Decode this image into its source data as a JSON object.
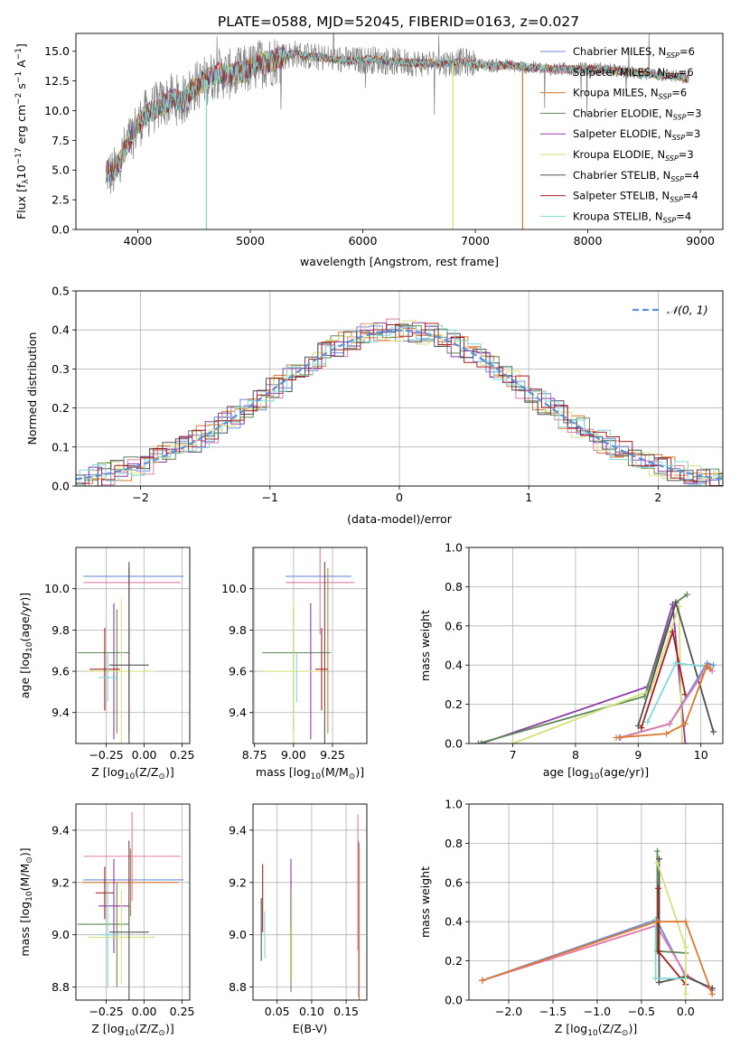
{
  "figure": {
    "title": "PLATE=0588, MJD=52045, FIBERID=0163, z=0.027"
  },
  "chart_data": [
    {
      "id": "spectrum",
      "type": "line",
      "xlabel": "wavelength [Angstrom, rest frame]",
      "ylabel": "Flux [f",
      "ylabel_sub": "λ",
      "ylabel_rest": "10",
      "ylabel_exp1": "−17",
      "ylabel_mid": " erg cm",
      "ylabel_exp2": "−2",
      "ylabel_mid2": " s",
      "ylabel_exp3": "−1",
      "ylabel_mid3": " A",
      "ylabel_exp4": "−1",
      "ylabel_end": "]",
      "xlim": [
        3450,
        9200
      ],
      "ylim": [
        0,
        16.5
      ],
      "xticks": [
        "4000",
        "5000",
        "6000",
        "7000",
        "8000",
        "9000"
      ],
      "xtick_values": [
        4000,
        5000,
        6000,
        7000,
        8000,
        9000
      ],
      "yticks": [
        "0.0",
        "2.5",
        "5.0",
        "7.5",
        "10.0",
        "12.5",
        "15.0"
      ],
      "ytick_values": [
        0,
        2.5,
        5,
        7.5,
        10,
        12.5,
        15
      ],
      "data_profile": {
        "x": [
          3700,
          3780,
          3850,
          3950,
          4050,
          4150,
          4300,
          4400,
          4500,
          4600,
          4700,
          4800,
          4900,
          5000,
          5100,
          5200,
          5300,
          5400,
          5500,
          5700,
          5900,
          6100,
          6300,
          6500,
          6700,
          6900,
          7100,
          7300,
          7500,
          7700,
          7900,
          8100,
          8300,
          8500,
          8700,
          8900
        ],
        "y": [
          5.0,
          4.6,
          6.0,
          8.0,
          9.5,
          10.2,
          11.0,
          10.8,
          12.0,
          12.5,
          13.2,
          13.0,
          13.2,
          13.5,
          14.0,
          14.2,
          14.6,
          14.8,
          14.6,
          14.4,
          14.2,
          14.3,
          14.1,
          14.0,
          14.0,
          14.1,
          13.8,
          13.8,
          13.6,
          13.5,
          13.5,
          13.5,
          13.3,
          13.1,
          13.0,
          12.7
        ]
      },
      "legend": [
        {
          "label": "Chabrier MILES, N",
          "sub": "SSP",
          "tail": "=6",
          "color": "#6b8fd8"
        },
        {
          "label": "Salpeter MILES, N",
          "sub": "SSP",
          "tail": "=6",
          "color": "#e07aa8"
        },
        {
          "label": "Kroupa MILES, N",
          "sub": "SSP",
          "tail": "=6",
          "color": "#d9782f"
        },
        {
          "label": "Chabrier ELODIE, N",
          "sub": "SSP",
          "tail": "=3",
          "color": "#5a8a58"
        },
        {
          "label": "Salpeter ELODIE, N",
          "sub": "SSP",
          "tail": "=3",
          "color": "#8e3aa8"
        },
        {
          "label": "Kroupa ELODIE, N",
          "sub": "SSP",
          "tail": "=3",
          "color": "#d6e07a"
        },
        {
          "label": "Chabrier STELIB, N",
          "sub": "SSP",
          "tail": "=4",
          "color": "#505050"
        },
        {
          "label": "Salpeter STELIB, N",
          "sub": "SSP",
          "tail": "=4",
          "color": "#a81c1c"
        },
        {
          "label": "Kroupa STELIB, N",
          "sub": "SSP",
          "tail": "=4",
          "color": "#7fd8d8"
        }
      ]
    },
    {
      "id": "residual-hist",
      "type": "bar",
      "xlabel": "(data-model)/error",
      "ylabel": "Normed distribution",
      "xlim": [
        -2.5,
        2.5
      ],
      "ylim": [
        0,
        0.5
      ],
      "xticks": [
        "−2",
        "−1",
        "0",
        "1",
        "2"
      ],
      "xtick_values": [
        -2,
        -1,
        0,
        1,
        2
      ],
      "yticks": [
        "0.0",
        "0.1",
        "0.2",
        "0.3",
        "0.4",
        "0.5"
      ],
      "ytick_values": [
        0,
        0.1,
        0.2,
        0.3,
        0.4,
        0.5
      ],
      "bin_width": 0.1,
      "gaussian_label": "𝒩(0, 1)",
      "gaussian_color": "#5b8fd8"
    },
    {
      "id": "age-vs-Z",
      "type": "scatter",
      "xlabel": "Z [log",
      "xlabel_sub": "10",
      "xlabel_tail": "(Z/Z",
      "xlabel_sub2": "⊙",
      "xlabel_end": ")]",
      "ylabel": "age  [log",
      "ylabel_sub": "10",
      "ylabel_tail": "(age/yr)]",
      "xlim": [
        -0.45,
        0.3
      ],
      "ylim": [
        9.25,
        10.2
      ],
      "xticks": [
        "−0.25",
        "0.00",
        "0.25"
      ],
      "xtick_values": [
        -0.25,
        0,
        0.25
      ],
      "yticks": [
        "9.4",
        "9.6",
        "9.8",
        "10.0"
      ],
      "ytick_values": [
        9.4,
        9.6,
        9.8,
        10.0
      ],
      "points": [
        {
          "x": -0.07,
          "xerr": 0.33,
          "y": 10.06,
          "yerr": 0.0,
          "color": "#6b8fd8"
        },
        {
          "x": -0.08,
          "xerr": 0.32,
          "y": 10.03,
          "yerr": 0.0,
          "color": "#e07aa8"
        },
        {
          "x": -0.1,
          "xerr": 0.0,
          "y": 9.7,
          "yerr": 0.4,
          "color": "#d9782f"
        },
        {
          "x": -0.27,
          "xerr": 0.17,
          "y": 9.69,
          "yerr": 0.0,
          "color": "#5a8a58"
        },
        {
          "x": -0.18,
          "xerr": 0.0,
          "y": 9.6,
          "yerr": 0.3,
          "color": "#5a8a58"
        },
        {
          "x": -0.2,
          "xerr": 0.0,
          "y": 9.6,
          "yerr": 0.33,
          "color": "#8e3aa8"
        },
        {
          "x": -0.15,
          "xerr": 0.22,
          "y": 9.6,
          "yerr": 0.35,
          "color": "#d6e07a"
        },
        {
          "x": -0.1,
          "xerr": 0.13,
          "y": 9.63,
          "yerr": 0.5,
          "color": "#505050"
        },
        {
          "x": -0.26,
          "xerr": 0.1,
          "y": 9.61,
          "yerr": 0.2,
          "color": "#a81c1c"
        },
        {
          "x": -0.24,
          "xerr": 0.06,
          "y": 9.57,
          "yerr": 0.12,
          "color": "#7fd8d8"
        }
      ]
    },
    {
      "id": "age-vs-mass",
      "type": "scatter",
      "xlabel": "mass [log",
      "xlabel_sub": "10",
      "xlabel_tail": "(M/M",
      "xlabel_sub2": "⊙",
      "xlabel_end": ")]",
      "xlim": [
        8.74,
        9.47
      ],
      "ylim": [
        9.25,
        10.2
      ],
      "xticks": [
        "8.75",
        "9.00",
        "9.25"
      ],
      "xtick_values": [
        8.75,
        9.0,
        9.25
      ],
      "yticks": [
        "9.4",
        "9.6",
        "9.8",
        "10.0"
      ],
      "ytick_values": [
        9.4,
        9.6,
        9.8,
        10.0
      ],
      "points": [
        {
          "x": 9.16,
          "xerr": 0.21,
          "y": 10.06,
          "yerr": 0.0,
          "color": "#6b8fd8"
        },
        {
          "x": 9.17,
          "xerr": 0.22,
          "y": 10.03,
          "yerr": 0.25,
          "color": "#e07aa8"
        },
        {
          "x": 9.22,
          "xerr": 0.0,
          "y": 9.7,
          "yerr": 0.4,
          "color": "#d9782f"
        },
        {
          "x": 9.02,
          "xerr": 0.22,
          "y": 9.69,
          "yerr": 0.0,
          "color": "#5a8a58"
        },
        {
          "x": 9.0,
          "xerr": 0.0,
          "y": 9.6,
          "yerr": 0.3,
          "color": "#5a8a58"
        },
        {
          "x": 9.11,
          "xerr": 0.0,
          "y": 9.6,
          "yerr": 0.33,
          "color": "#8e3aa8"
        },
        {
          "x": 9.0,
          "xerr": 0.2,
          "y": 9.6,
          "yerr": 0.35,
          "color": "#d6e07a"
        },
        {
          "x": 9.2,
          "xerr": 0.0,
          "y": 9.63,
          "yerr": 0.5,
          "color": "#505050"
        },
        {
          "x": 9.18,
          "xerr": 0.04,
          "y": 9.61,
          "yerr": 0.2,
          "color": "#a81c1c"
        },
        {
          "x": 9.02,
          "xerr": 0.0,
          "y": 9.57,
          "yerr": 0.12,
          "color": "#7fd8d8"
        }
      ]
    },
    {
      "id": "weight-vs-age",
      "type": "line",
      "xlabel": "age  [log",
      "xlabel_sub": "10",
      "xlabel_tail": "(age/yr)]",
      "ylabel": "mass weight",
      "xlim": [
        6.3,
        10.35
      ],
      "ylim": [
        0,
        1.0
      ],
      "xticks": [
        "7",
        "8",
        "9",
        "10"
      ],
      "xtick_values": [
        7,
        8,
        9,
        10
      ],
      "yticks": [
        "0.0",
        "0.2",
        "0.4",
        "0.6",
        "0.8",
        "1.0"
      ],
      "ytick_values": [
        0,
        0.2,
        0.4,
        0.6,
        0.8,
        1.0
      ],
      "series": [
        {
          "color": "#8e3aa8",
          "x": [
            6.5,
            9.15,
            9.55,
            9.75
          ],
          "y": [
            0.0,
            0.29,
            0.71,
            0.0
          ]
        },
        {
          "color": "#5a8a58",
          "x": [
            6.45,
            9.1,
            9.6,
            9.78
          ],
          "y": [
            0.0,
            0.24,
            0.72,
            0.76
          ]
        },
        {
          "color": "#d6e07a",
          "x": [
            7.0,
            9.2,
            9.65,
            9.7
          ],
          "y": [
            0.0,
            0.27,
            0.7,
            0.0
          ]
        },
        {
          "color": "#505050",
          "x": [
            9.0,
            9.6,
            10.2
          ],
          "y": [
            0.09,
            0.72,
            0.06
          ]
        },
        {
          "color": "#a81c1c",
          "x": [
            9.05,
            9.55,
            9.75
          ],
          "y": [
            0.08,
            0.57,
            0.25
          ]
        },
        {
          "color": "#7fd8d8",
          "x": [
            9.15,
            9.6,
            10.15
          ],
          "y": [
            0.11,
            0.41,
            0.39
          ]
        },
        {
          "color": "#6b8fd8",
          "x": [
            8.7,
            9.5,
            10.1,
            10.2
          ],
          "y": [
            0.03,
            0.1,
            0.41,
            0.4
          ]
        },
        {
          "color": "#e07aa8",
          "x": [
            8.72,
            9.5,
            10.1,
            10.18
          ],
          "y": [
            0.03,
            0.1,
            0.39,
            0.37
          ]
        },
        {
          "color": "#d9782f",
          "x": [
            8.65,
            9.45,
            9.75,
            10.1,
            10.15
          ],
          "y": [
            0.03,
            0.05,
            0.1,
            0.4,
            0.38
          ]
        }
      ]
    },
    {
      "id": "mass-vs-Z",
      "type": "scatter",
      "xlabel": "Z [log",
      "xlabel_sub": "10",
      "xlabel_tail": "(Z/Z",
      "xlabel_sub2": "⊙",
      "xlabel_end": ")]",
      "ylabel": "mass [log",
      "ylabel_sub": "10",
      "ylabel_tail": "(M/M",
      "ylabel_sub2": "⊙",
      "ylabel_end": ")]",
      "xlim": [
        -0.45,
        0.3
      ],
      "ylim": [
        8.75,
        9.5
      ],
      "xticks": [
        "−0.25",
        "0.00",
        "0.25"
      ],
      "xtick_values": [
        -0.25,
        0,
        0.25
      ],
      "yticks": [
        "8.8",
        "9.0",
        "9.2",
        "9.4"
      ],
      "ytick_values": [
        8.8,
        9.0,
        9.2,
        9.4
      ],
      "points": [
        {
          "x": -0.07,
          "xerr": 0.33,
          "y": 9.21,
          "yerr": 0.0,
          "color": "#6b8fd8"
        },
        {
          "x": -0.08,
          "xerr": 0.32,
          "y": 9.3,
          "yerr": 0.17,
          "color": "#e07aa8"
        },
        {
          "x": -0.09,
          "xerr": 0.32,
          "y": 9.2,
          "yerr": 0.13,
          "color": "#d9782f"
        },
        {
          "x": -0.27,
          "xerr": 0.17,
          "y": 9.04,
          "yerr": 0.0,
          "color": "#5a8a58"
        },
        {
          "x": -0.18,
          "xerr": 0.0,
          "y": 9.0,
          "yerr": 0.2,
          "color": "#5a8a58"
        },
        {
          "x": -0.2,
          "xerr": 0.1,
          "y": 9.11,
          "yerr": 0.18,
          "color": "#8e3aa8"
        },
        {
          "x": -0.15,
          "xerr": 0.22,
          "y": 8.99,
          "yerr": 0.18,
          "color": "#d6e07a"
        },
        {
          "x": -0.1,
          "xerr": 0.13,
          "y": 9.01,
          "yerr": 0.35,
          "color": "#505050"
        },
        {
          "x": -0.26,
          "xerr": 0.06,
          "y": 9.16,
          "yerr": 0.1,
          "color": "#a81c1c"
        },
        {
          "x": -0.24,
          "xerr": 0.06,
          "y": 9.0,
          "yerr": 0.2,
          "color": "#7fd8d8"
        }
      ]
    },
    {
      "id": "mass-vs-ebv",
      "type": "scatter",
      "xlabel": "E(B-V)",
      "xlim": [
        0.015,
        0.18
      ],
      "ylim": [
        8.75,
        9.5
      ],
      "xticks": [
        "0.05",
        "0.10",
        "0.15"
      ],
      "xtick_values": [
        0.05,
        0.1,
        0.15
      ],
      "yticks": [
        "8.8",
        "9.0",
        "9.2",
        "9.4"
      ],
      "ytick_values": [
        8.8,
        9.0,
        9.2,
        9.4
      ],
      "points": [
        {
          "x": 0.168,
          "y": 9.06,
          "yerr": 0.3,
          "color": "#6b8fd8"
        },
        {
          "x": 0.167,
          "y": 9.2,
          "yerr": 0.26,
          "color": "#e07aa8"
        },
        {
          "x": 0.169,
          "y": 9.05,
          "yerr": 0.3,
          "color": "#d9782f"
        },
        {
          "x": 0.07,
          "y": 9.0,
          "yerr": 0.22,
          "color": "#5a8a58"
        },
        {
          "x": 0.07,
          "y": 9.16,
          "yerr": 0.13,
          "color": "#8e3aa8"
        },
        {
          "x": 0.071,
          "y": 9.0,
          "yerr": 0.17,
          "color": "#d6e07a"
        },
        {
          "x": 0.027,
          "y": 9.02,
          "yerr": 0.12,
          "color": "#505050"
        },
        {
          "x": 0.029,
          "y": 9.14,
          "yerr": 0.13,
          "color": "#a81c1c"
        },
        {
          "x": 0.032,
          "y": 9.0,
          "yerr": 0.09,
          "color": "#7fd8d8"
        }
      ]
    },
    {
      "id": "weight-vs-Z",
      "type": "line",
      "xlabel": "Z [log",
      "xlabel_sub": "10",
      "xlabel_tail": "(Z/Z",
      "xlabel_sub2": "⊙",
      "xlabel_end": ")]",
      "ylabel": "mass weight",
      "xlim": [
        -2.45,
        0.42
      ],
      "ylim": [
        0,
        1.0
      ],
      "xticks": [
        "−2.0",
        "−1.5",
        "−1.0",
        "−0.5",
        "0.0"
      ],
      "xtick_values": [
        -2.0,
        -1.5,
        -1.0,
        -0.5,
        0.0
      ],
      "yticks": [
        "0.0",
        "0.2",
        "0.4",
        "0.6",
        "0.8",
        "1.0"
      ],
      "ytick_values": [
        0,
        0.2,
        0.4,
        0.6,
        0.8,
        1.0
      ],
      "series": [
        {
          "color": "#6b8fd8",
          "x": [
            -2.3,
            -0.33,
            0.0,
            0.3
          ],
          "y": [
            0.1,
            0.41,
            0.12,
            0.06
          ]
        },
        {
          "color": "#e07aa8",
          "x": [
            -2.3,
            -0.33,
            0.0,
            0.3
          ],
          "y": [
            0.1,
            0.38,
            0.13,
            0.05
          ]
        },
        {
          "color": "#5a8a58",
          "x": [
            -0.32,
            -0.32,
            0.0
          ],
          "y": [
            0.76,
            0.25,
            0.24
          ]
        },
        {
          "color": "#505050",
          "x": [
            -0.3,
            -0.3,
            0.0,
            0.3
          ],
          "y": [
            0.72,
            0.09,
            0.12,
            0.06
          ]
        },
        {
          "color": "#a81c1c",
          "x": [
            -0.31,
            -0.31,
            0.0
          ],
          "y": [
            0.57,
            0.25,
            0.08
          ]
        },
        {
          "color": "#7fd8d8",
          "x": [
            -0.34,
            -0.34,
            0.0
          ],
          "y": [
            0.41,
            0.11,
            0.11
          ]
        },
        {
          "color": "#d6e07a",
          "x": [
            -0.32,
            0.0,
            0.0
          ],
          "y": [
            0.7,
            0.27,
            0.03
          ]
        },
        {
          "color": "#d9782f",
          "x": [
            -2.3,
            -0.33,
            0.0,
            0.3
          ],
          "y": [
            0.1,
            0.4,
            0.4,
            0.03
          ]
        }
      ]
    }
  ]
}
